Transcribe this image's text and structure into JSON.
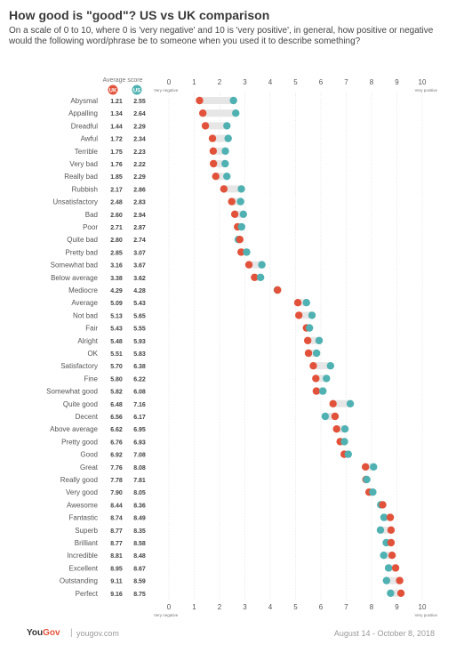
{
  "header": {
    "title": "How good is \"good\"? US vs UK comparison",
    "subtitle": "On a scale of 0 to 10, where 0 is 'very negative' and 10 is 'very positive', in general, how positive or negative would the following word/phrase be to someone when you used it to describe something?"
  },
  "footer": {
    "brand_you": "You",
    "brand_gov": "Gov",
    "separator": "|",
    "url": "yougov.com",
    "date_range": "August 14 - October 8, 2018"
  },
  "colors": {
    "uk": "#e2523b",
    "us": "#4fb1b2",
    "range": "#e6e6e6",
    "grid": "#d9d9d9"
  },
  "chart_data": {
    "type": "dot",
    "average_score_label": "Average score",
    "series_labels": [
      "UK",
      "US"
    ],
    "x_ticks": [
      "0",
      "1",
      "2",
      "3",
      "4",
      "5",
      "6",
      "7",
      "8",
      "9",
      "10"
    ],
    "xlim": [
      0,
      10
    ],
    "axis_end_labels": {
      "low": "Very negative",
      "high": "Very positive"
    },
    "words": [
      "Abysmal",
      "Appalling",
      "Dreadful",
      "Awful",
      "Terrible",
      "Very bad",
      "Really bad",
      "Rubbish",
      "Unsatisfactory",
      "Bad",
      "Poor",
      "Quite bad",
      "Pretty bad",
      "Somewhat bad",
      "Below average",
      "Mediocre",
      "Average",
      "Not bad",
      "Fair",
      "Alright",
      "OK",
      "Satisfactory",
      "Fine",
      "Somewhat good",
      "Quite good",
      "Decent",
      "Above average",
      "Pretty good",
      "Good",
      "Great",
      "Really good",
      "Very good",
      "Awesome",
      "Fantastic",
      "Superb",
      "Brilliant",
      "Incredible",
      "Excellent",
      "Outstanding",
      "Perfect"
    ],
    "series": [
      {
        "name": "UK",
        "values": [
          1.21,
          1.34,
          1.44,
          1.72,
          1.75,
          1.76,
          1.85,
          2.17,
          2.48,
          2.6,
          2.71,
          2.8,
          2.85,
          3.16,
          3.38,
          4.29,
          5.09,
          5.13,
          5.43,
          5.48,
          5.51,
          5.7,
          5.8,
          5.82,
          6.48,
          6.56,
          6.62,
          6.76,
          6.92,
          7.76,
          7.78,
          7.9,
          8.44,
          8.74,
          8.77,
          8.77,
          8.81,
          8.95,
          9.11,
          9.16
        ]
      },
      {
        "name": "US",
        "values": [
          2.55,
          2.64,
          2.29,
          2.34,
          2.23,
          2.22,
          2.29,
          2.86,
          2.83,
          2.94,
          2.87,
          2.74,
          3.07,
          3.67,
          3.62,
          4.28,
          5.43,
          5.65,
          5.55,
          5.93,
          5.83,
          6.38,
          6.22,
          6.08,
          7.16,
          6.17,
          6.95,
          6.93,
          7.08,
          8.08,
          7.81,
          8.05,
          8.36,
          8.49,
          8.35,
          8.58,
          8.48,
          8.67,
          8.59,
          8.75
        ]
      }
    ]
  }
}
